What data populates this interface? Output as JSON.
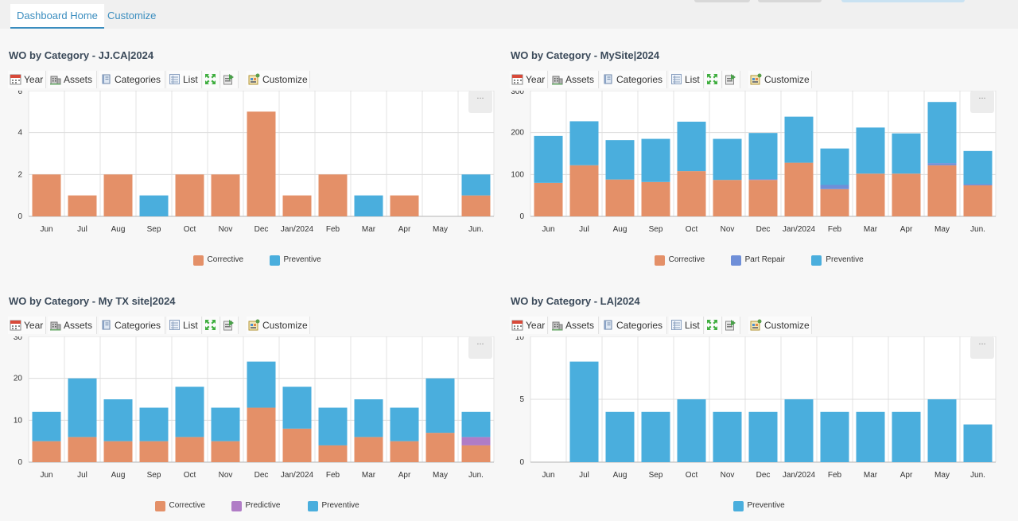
{
  "tabs": [
    {
      "label": "Dashboard Home",
      "active": true
    },
    {
      "label": "Customize",
      "active": false
    }
  ],
  "toolbar": {
    "year": "Year",
    "assets": "Assets",
    "categories": "Categories",
    "list": "List",
    "customize": "Customize"
  },
  "more_label": "...",
  "colors": {
    "Corrective": "#e49068",
    "Preventive": "#4aaedd",
    "Part Repair": "#6f8fd8",
    "Predictive": "#b07cc6"
  },
  "panels": [
    {
      "title": "WO by Category - JJ.CA|2024",
      "chart_data": {
        "type": "bar",
        "stacked": true,
        "categories": [
          "Jun",
          "Jul",
          "Aug",
          "Sep",
          "Oct",
          "Nov",
          "Dec",
          "Jan/2024",
          "Feb",
          "Mar",
          "Apr",
          "May",
          "Jun."
        ],
        "ylim": [
          0,
          6
        ],
        "yticks": [
          0,
          2,
          4,
          6
        ],
        "series": [
          {
            "name": "Corrective",
            "values": [
              2,
              1,
              2,
              0,
              2,
              2,
              5,
              1,
              2,
              0,
              1,
              0,
              1
            ]
          },
          {
            "name": "Preventive",
            "values": [
              0,
              0,
              0,
              1,
              0,
              0,
              0,
              0,
              0,
              1,
              0,
              0,
              1
            ]
          }
        ],
        "legend": [
          "Corrective",
          "Preventive"
        ],
        "grid": true
      }
    },
    {
      "title": "WO by Category - MySite|2024",
      "chart_data": {
        "type": "bar",
        "stacked": true,
        "categories": [
          "Jun",
          "Jul",
          "Aug",
          "Sep",
          "Oct",
          "Nov",
          "Dec",
          "Jan/2024",
          "Feb",
          "Mar",
          "Apr",
          "May",
          "Jun."
        ],
        "ylim": [
          0,
          300
        ],
        "yticks": [
          0,
          100,
          200,
          300
        ],
        "series": [
          {
            "name": "Corrective",
            "values": [
              80,
              122,
              88,
              82,
              108,
              87,
              87,
              128,
              65,
              102,
              102,
              122,
              74
            ]
          },
          {
            "name": "Part Repair",
            "values": [
              0,
              0,
              0,
              0,
              0,
              0,
              2,
              0,
              10,
              0,
              0,
              5,
              3
            ]
          },
          {
            "name": "Preventive",
            "values": [
              112,
              105,
              94,
              103,
              118,
              98,
              110,
              110,
              87,
              110,
              96,
              146,
              79
            ]
          }
        ],
        "legend": [
          "Corrective",
          "Part Repair",
          "Preventive"
        ],
        "grid": true
      }
    },
    {
      "title": "WO by Category - My TX site|2024",
      "chart_data": {
        "type": "bar",
        "stacked": true,
        "categories": [
          "Jun",
          "Jul",
          "Aug",
          "Sep",
          "Oct",
          "Nov",
          "Dec",
          "Jan/2024",
          "Feb",
          "Mar",
          "Apr",
          "May",
          "Jun."
        ],
        "ylim": [
          0,
          30
        ],
        "yticks": [
          0,
          10,
          20,
          30
        ],
        "series": [
          {
            "name": "Corrective",
            "values": [
              5,
              6,
              5,
              5,
              6,
              5,
              13,
              8,
              4,
              6,
              5,
              7,
              4
            ]
          },
          {
            "name": "Predictive",
            "values": [
              0,
              0,
              0,
              0,
              0,
              0,
              0,
              0,
              0,
              0,
              0,
              0,
              2
            ]
          },
          {
            "name": "Preventive",
            "values": [
              7,
              14,
              10,
              8,
              12,
              8,
              11,
              10,
              9,
              9,
              8,
              13,
              6
            ]
          }
        ],
        "legend": [
          "Corrective",
          "Predictive",
          "Preventive"
        ],
        "grid": true
      }
    },
    {
      "title": "WO by Category - LA|2024",
      "chart_data": {
        "type": "bar",
        "stacked": true,
        "categories": [
          "Jun",
          "Jul",
          "Aug",
          "Sep",
          "Oct",
          "Nov",
          "Dec",
          "Jan/2024",
          "Feb",
          "Mar",
          "Apr",
          "May",
          "Jun."
        ],
        "ylim": [
          0,
          10
        ],
        "yticks": [
          0,
          5,
          10
        ],
        "series": [
          {
            "name": "Preventive",
            "values": [
              0,
              8,
              4,
              4,
              5,
              4,
              4,
              5,
              4,
              4,
              4,
              5,
              3
            ]
          }
        ],
        "legend": [
          "Preventive"
        ],
        "grid": true
      }
    }
  ]
}
